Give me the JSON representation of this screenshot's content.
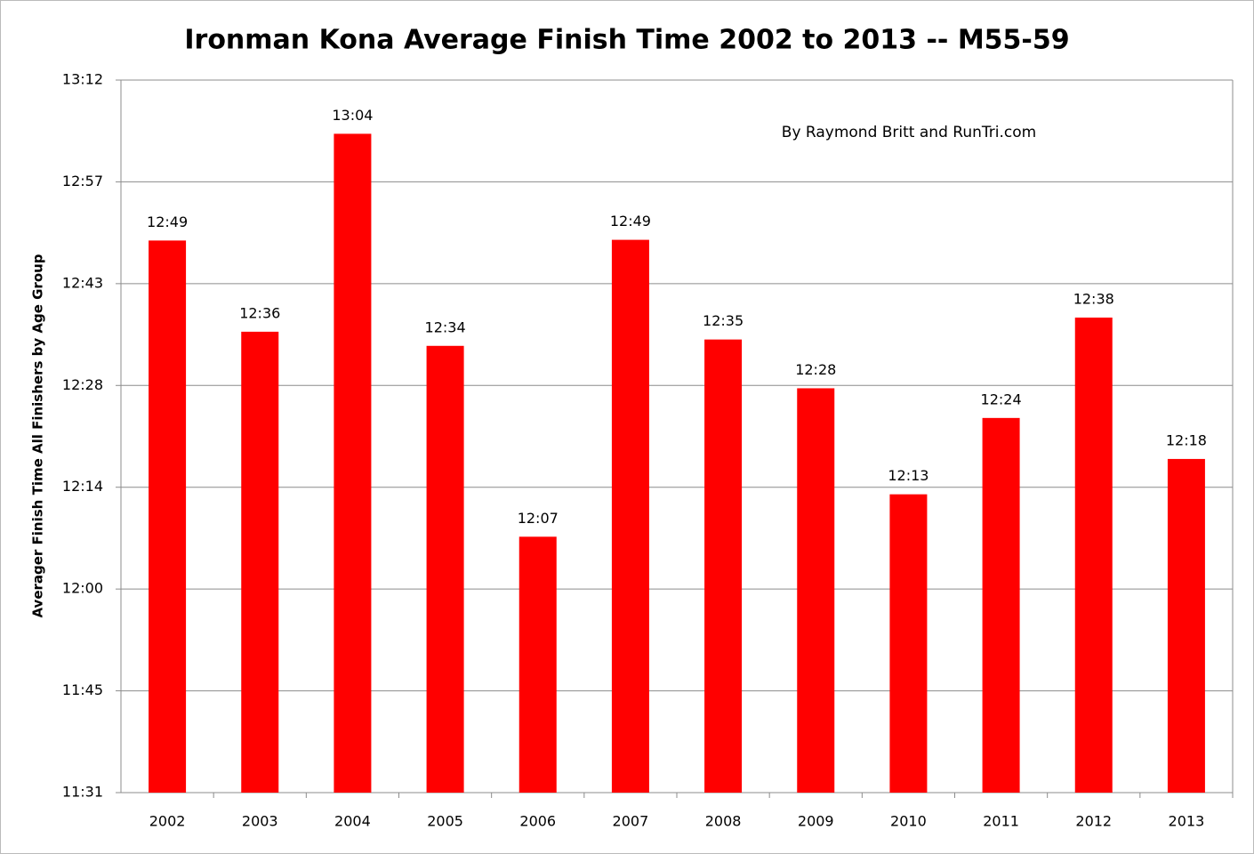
{
  "chart_data": {
    "type": "bar",
    "title": "Ironman Kona Average Finish Time 2002 to 2013 -- M55-59",
    "y_label": "Averager Finish Time All Finishers by Age Group",
    "annotation": "By Raymond Britt and RunTri.com",
    "categories": [
      "2002",
      "2003",
      "2004",
      "2005",
      "2006",
      "2007",
      "2008",
      "2009",
      "2010",
      "2011",
      "2012",
      "2013"
    ],
    "values": [
      769.3,
      756.4,
      784.4,
      754.4,
      727.4,
      769.4,
      755.3,
      748.4,
      733.4,
      744.2,
      758.4,
      738.4
    ],
    "value_labels": [
      "12:49",
      "12:36",
      "13:04",
      "12:34",
      "12:07",
      "12:49",
      "12:35",
      "12:28",
      "12:13",
      "12:24",
      "12:38",
      "12:18"
    ],
    "color": "#ff0000",
    "ylim": [
      691.2,
      792
    ],
    "yticks": [
      {
        "value": 691.2,
        "label": "11:31"
      },
      {
        "value": 705.6,
        "label": "11:45"
      },
      {
        "value": 720,
        "label": "12:00"
      },
      {
        "value": 734.4,
        "label": "12:14"
      },
      {
        "value": 748.8,
        "label": "12:28"
      },
      {
        "value": 763.2,
        "label": "12:43"
      },
      {
        "value": 777.6,
        "label": "12:57"
      },
      {
        "value": 792,
        "label": "13:12"
      }
    ],
    "grid": true
  }
}
